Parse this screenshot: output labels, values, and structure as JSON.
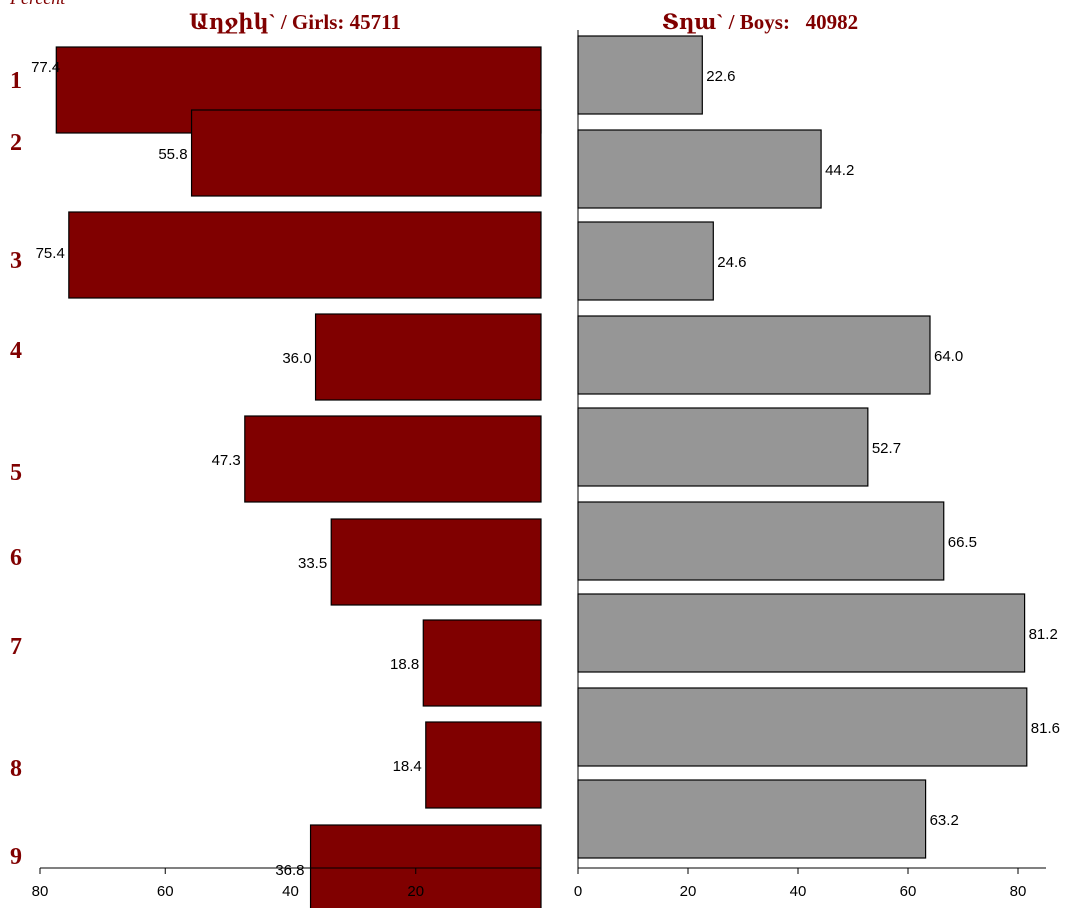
{
  "chart_data": {
    "type": "bar",
    "orientation": "horizontal",
    "layout": "population-pyramid",
    "corner_label": "Percent",
    "categories": [
      "1",
      "2",
      "3",
      "4",
      "5",
      "6",
      "7",
      "8",
      "9"
    ],
    "series": [
      {
        "name": "Աղջիկ` / Girls: 45711",
        "side": "left",
        "color": "#800000",
        "values": [
          77.4,
          55.8,
          75.4,
          36.0,
          47.3,
          33.5,
          18.8,
          18.4,
          36.8
        ]
      },
      {
        "name": "Տղա` / Boys:   40982",
        "side": "right",
        "color": "#969696",
        "values": [
          22.6,
          44.2,
          24.6,
          64.0,
          52.7,
          66.5,
          81.2,
          81.6,
          63.2
        ]
      }
    ],
    "left_axis": {
      "reversed": true,
      "ticks": [
        "80",
        "60",
        "40",
        "20"
      ]
    },
    "right_axis": {
      "ticks": [
        "0",
        "20",
        "40",
        "60",
        "80"
      ]
    },
    "xlim": [
      0,
      80
    ],
    "grid": false,
    "legend": "none"
  }
}
